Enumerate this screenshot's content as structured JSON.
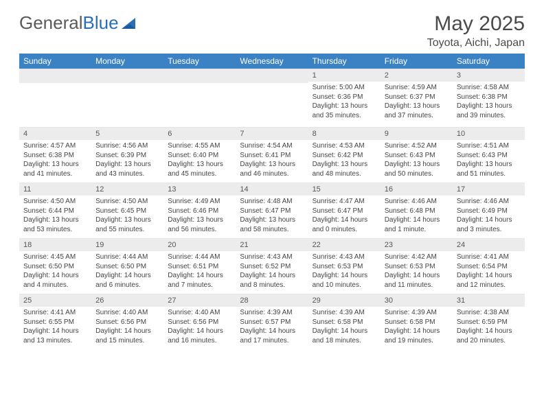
{
  "brand": {
    "name_a": "General",
    "name_b": "Blue"
  },
  "title": "May 2025",
  "location": "Toyota, Aichi, Japan",
  "colors": {
    "header_bg": "#3b82c4",
    "header_text": "#ffffff",
    "daynum_bg": "#ececec",
    "body_text": "#444444",
    "title_text": "#4a4a4a",
    "page_bg": "#ffffff",
    "logo_gray": "#5a5a5a",
    "logo_blue": "#2a6fb5"
  },
  "typography": {
    "title_fontsize": 30,
    "location_fontsize": 16,
    "header_fontsize": 12,
    "daynum_fontsize": 11,
    "body_fontsize": 10
  },
  "dayNames": [
    "Sunday",
    "Monday",
    "Tuesday",
    "Wednesday",
    "Thursday",
    "Friday",
    "Saturday"
  ],
  "grid": {
    "columns": 7,
    "rows": 5
  },
  "days": [
    {
      "n": 1,
      "sunrise": "5:00 AM",
      "sunset": "6:36 PM",
      "daylight": "13 hours and 35 minutes."
    },
    {
      "n": 2,
      "sunrise": "4:59 AM",
      "sunset": "6:37 PM",
      "daylight": "13 hours and 37 minutes."
    },
    {
      "n": 3,
      "sunrise": "4:58 AM",
      "sunset": "6:38 PM",
      "daylight": "13 hours and 39 minutes."
    },
    {
      "n": 4,
      "sunrise": "4:57 AM",
      "sunset": "6:38 PM",
      "daylight": "13 hours and 41 minutes."
    },
    {
      "n": 5,
      "sunrise": "4:56 AM",
      "sunset": "6:39 PM",
      "daylight": "13 hours and 43 minutes."
    },
    {
      "n": 6,
      "sunrise": "4:55 AM",
      "sunset": "6:40 PM",
      "daylight": "13 hours and 45 minutes."
    },
    {
      "n": 7,
      "sunrise": "4:54 AM",
      "sunset": "6:41 PM",
      "daylight": "13 hours and 46 minutes."
    },
    {
      "n": 8,
      "sunrise": "4:53 AM",
      "sunset": "6:42 PM",
      "daylight": "13 hours and 48 minutes."
    },
    {
      "n": 9,
      "sunrise": "4:52 AM",
      "sunset": "6:43 PM",
      "daylight": "13 hours and 50 minutes."
    },
    {
      "n": 10,
      "sunrise": "4:51 AM",
      "sunset": "6:43 PM",
      "daylight": "13 hours and 51 minutes."
    },
    {
      "n": 11,
      "sunrise": "4:50 AM",
      "sunset": "6:44 PM",
      "daylight": "13 hours and 53 minutes."
    },
    {
      "n": 12,
      "sunrise": "4:50 AM",
      "sunset": "6:45 PM",
      "daylight": "13 hours and 55 minutes."
    },
    {
      "n": 13,
      "sunrise": "4:49 AM",
      "sunset": "6:46 PM",
      "daylight": "13 hours and 56 minutes."
    },
    {
      "n": 14,
      "sunrise": "4:48 AM",
      "sunset": "6:47 PM",
      "daylight": "13 hours and 58 minutes."
    },
    {
      "n": 15,
      "sunrise": "4:47 AM",
      "sunset": "6:47 PM",
      "daylight": "14 hours and 0 minutes."
    },
    {
      "n": 16,
      "sunrise": "4:46 AM",
      "sunset": "6:48 PM",
      "daylight": "14 hours and 1 minute."
    },
    {
      "n": 17,
      "sunrise": "4:46 AM",
      "sunset": "6:49 PM",
      "daylight": "14 hours and 3 minutes."
    },
    {
      "n": 18,
      "sunrise": "4:45 AM",
      "sunset": "6:50 PM",
      "daylight": "14 hours and 4 minutes."
    },
    {
      "n": 19,
      "sunrise": "4:44 AM",
      "sunset": "6:50 PM",
      "daylight": "14 hours and 6 minutes."
    },
    {
      "n": 20,
      "sunrise": "4:44 AM",
      "sunset": "6:51 PM",
      "daylight": "14 hours and 7 minutes."
    },
    {
      "n": 21,
      "sunrise": "4:43 AM",
      "sunset": "6:52 PM",
      "daylight": "14 hours and 8 minutes."
    },
    {
      "n": 22,
      "sunrise": "4:43 AM",
      "sunset": "6:53 PM",
      "daylight": "14 hours and 10 minutes."
    },
    {
      "n": 23,
      "sunrise": "4:42 AM",
      "sunset": "6:53 PM",
      "daylight": "14 hours and 11 minutes."
    },
    {
      "n": 24,
      "sunrise": "4:41 AM",
      "sunset": "6:54 PM",
      "daylight": "14 hours and 12 minutes."
    },
    {
      "n": 25,
      "sunrise": "4:41 AM",
      "sunset": "6:55 PM",
      "daylight": "14 hours and 13 minutes."
    },
    {
      "n": 26,
      "sunrise": "4:40 AM",
      "sunset": "6:56 PM",
      "daylight": "14 hours and 15 minutes."
    },
    {
      "n": 27,
      "sunrise": "4:40 AM",
      "sunset": "6:56 PM",
      "daylight": "14 hours and 16 minutes."
    },
    {
      "n": 28,
      "sunrise": "4:39 AM",
      "sunset": "6:57 PM",
      "daylight": "14 hours and 17 minutes."
    },
    {
      "n": 29,
      "sunrise": "4:39 AM",
      "sunset": "6:58 PM",
      "daylight": "14 hours and 18 minutes."
    },
    {
      "n": 30,
      "sunrise": "4:39 AM",
      "sunset": "6:58 PM",
      "daylight": "14 hours and 19 minutes."
    },
    {
      "n": 31,
      "sunrise": "4:38 AM",
      "sunset": "6:59 PM",
      "daylight": "14 hours and 20 minutes."
    }
  ],
  "firstDayOffset": 4,
  "labels": {
    "sunrise": "Sunrise: ",
    "sunset": "Sunset: ",
    "daylight": "Daylight: "
  }
}
